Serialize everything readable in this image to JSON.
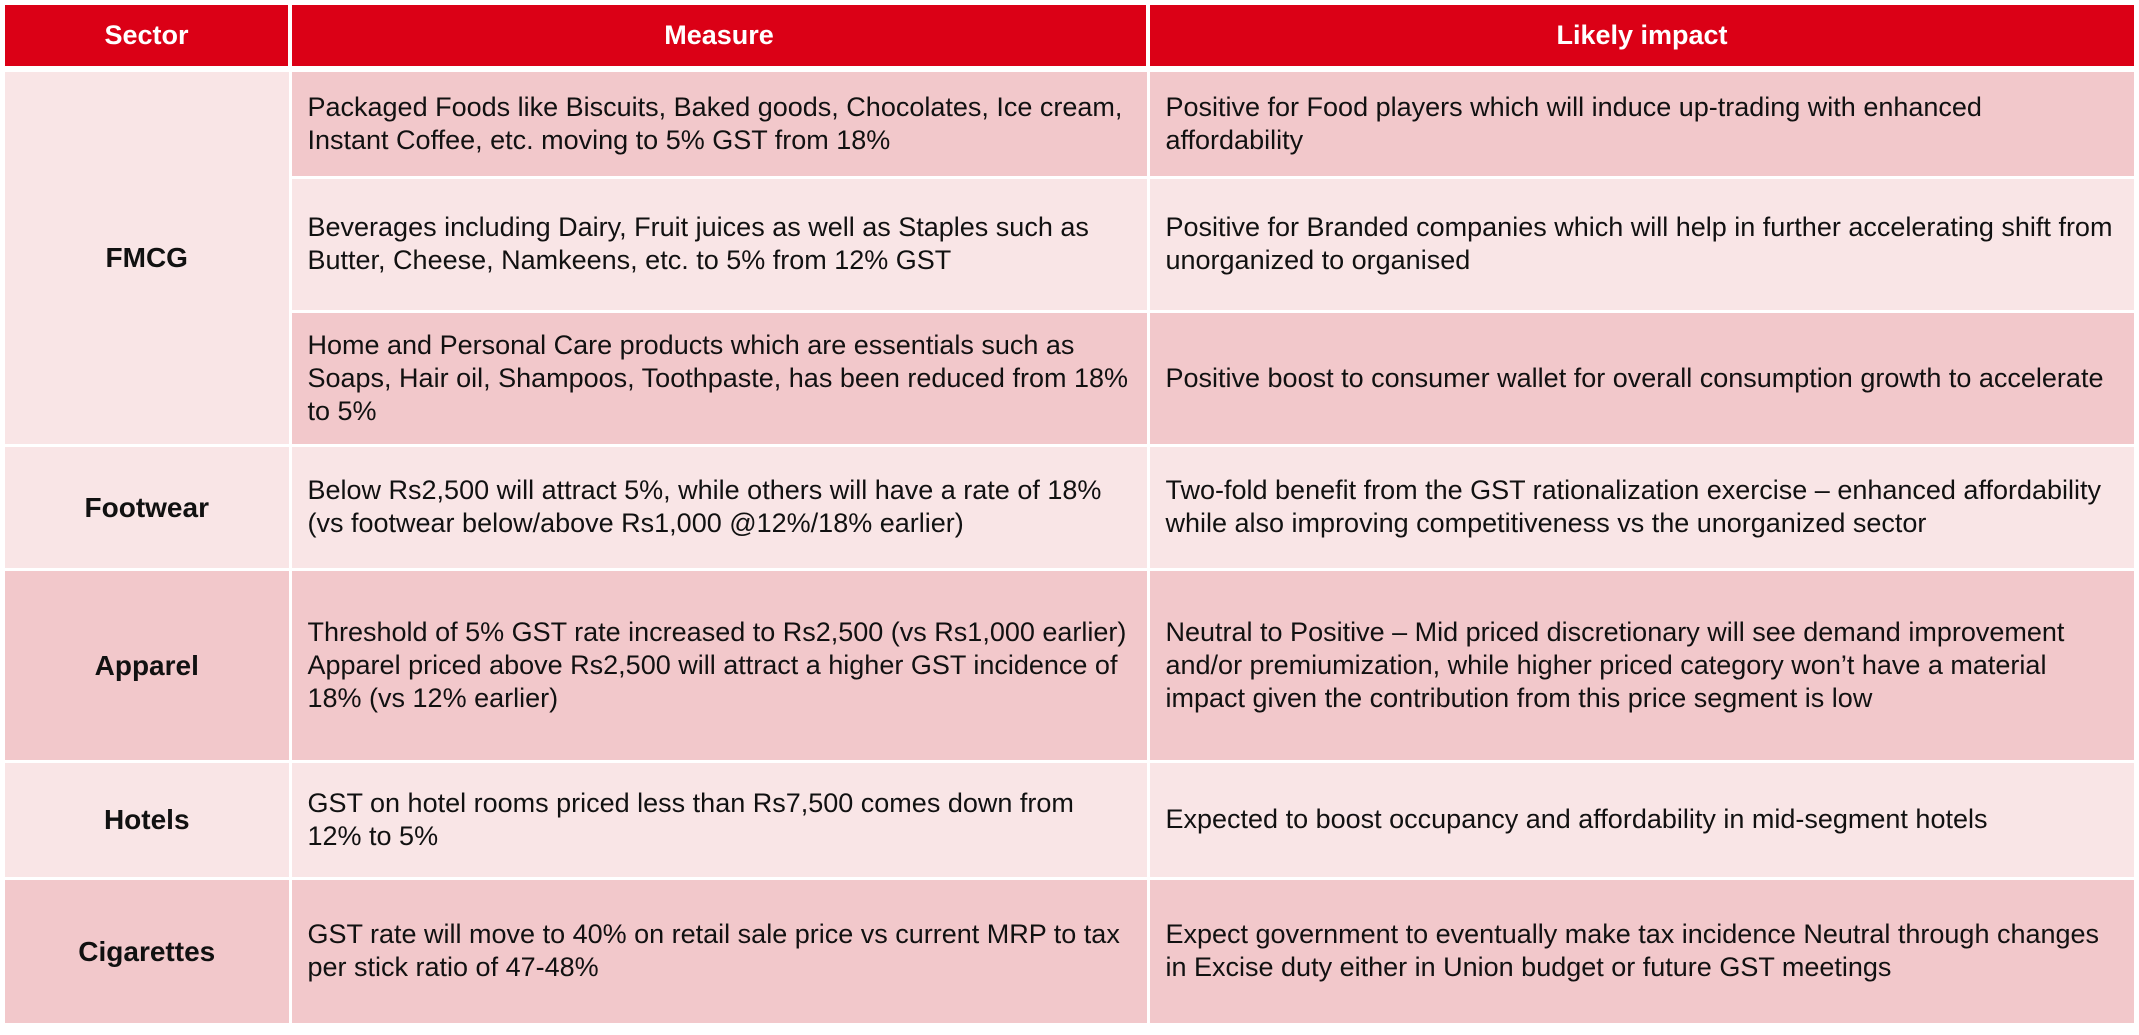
{
  "headers": {
    "sector": "Sector",
    "measure": "Measure",
    "impact": "Likely impact"
  },
  "rows": [
    {
      "sector": "FMCG",
      "measure": "Packaged Foods like Biscuits, Baked goods, Chocolates, Ice cream, Instant Coffee, etc. moving to 5% GST from 18%",
      "impact": "Positive for Food players which will induce up-trading with enhanced affordability"
    },
    {
      "sector": "",
      "measure": "Beverages including Dairy, Fruit juices as well as Staples such as Butter, Cheese, Namkeens, etc. to 5% from 12% GST",
      "impact": "Positive for Branded companies which will help in further accelerating shift from unorganized to organised"
    },
    {
      "sector": "",
      "measure": "Home and Personal Care products which are essentials such as Soaps, Hair oil, Shampoos, Toothpaste, has been reduced from 18% to 5%",
      "impact": "Positive boost to consumer wallet for overall consumption growth to accelerate"
    },
    {
      "sector": "Footwear",
      "measure": "Below Rs2,500 will attract 5%, while others will have a rate of 18% (vs footwear below/above Rs1,000 @12%/18% earlier)",
      "impact": "Two-fold benefit from the GST rationalization exercise – enhanced affordability while also improving competitiveness vs the unorganized sector"
    },
    {
      "sector": "Apparel",
      "measure": "Threshold of 5% GST rate increased to Rs2,500 (vs Rs1,000 earlier) Apparel priced above Rs2,500 will attract a higher GST incidence of 18% (vs 12% earlier)",
      "impact": "Neutral to Positive – Mid priced discretionary will see demand improvement and/or premiumization, while higher priced category won’t have a material impact given the contribution from this price segment is low"
    },
    {
      "sector": "Hotels",
      "measure": "GST on hotel rooms priced less than Rs7,500 comes down from 12% to 5%",
      "impact": "Expected to boost occupancy and affordability in mid-segment hotels"
    },
    {
      "sector": "Cigarettes",
      "measure": "GST rate will move to 40% on retail sale price vs current MRP to tax per stick ratio of 47-48%",
      "impact": "Expect government to eventually make tax incidence Neutral through changes in Excise duty either in Union budget or future GST meetings"
    }
  ],
  "colors": {
    "header_bg": "#db0016",
    "row_dark": "#f2c8cb",
    "row_light": "#f9e5e6"
  }
}
